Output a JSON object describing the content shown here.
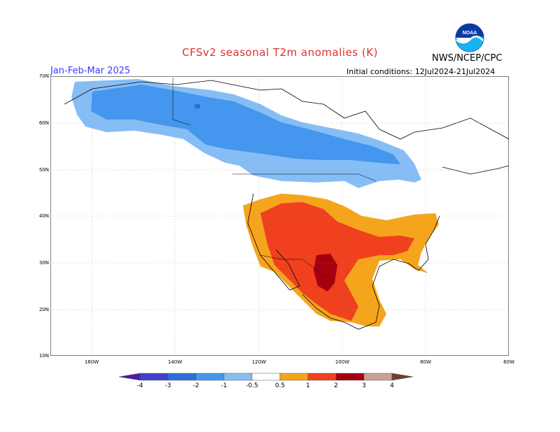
{
  "title": "CFSv2 seasonal T2m anomalies (K)",
  "period": "Jan-Feb-Mar 2025",
  "initial_conditions": "Initial conditions: 12Jul2024-21Jul2024",
  "agency": "NWS/NCEP/CPC",
  "logo_text": "NOAA",
  "lat_labels": [
    "70N",
    "60N",
    "50N",
    "40N",
    "30N",
    "20N",
    "10N"
  ],
  "lon_labels": [
    "160W",
    "140W",
    "120W",
    "100W",
    "80W",
    "60W"
  ],
  "colorbar": {
    "labels": [
      "-4",
      "-3",
      "-2",
      "-1",
      "-0.5",
      "0.5",
      "1",
      "2",
      "3",
      "4"
    ],
    "bins": [
      {
        "range": "< -4",
        "color": "#4a1aa8"
      },
      {
        "range": "-4 to -3",
        "color": "#4040cc"
      },
      {
        "range": "-3 to -2",
        "color": "#2d6fd8"
      },
      {
        "range": "-2 to -1",
        "color": "#4496ee"
      },
      {
        "range": "-1 to -0.5",
        "color": "#86bdf5"
      },
      {
        "range": "-0.5 to 0.5",
        "color": "#ffffff"
      },
      {
        "range": "0.5 to 1",
        "color": "#f5a51c"
      },
      {
        "range": "1 to 2",
        "color": "#f0401e"
      },
      {
        "range": "2 to 3",
        "color": "#a6000f"
      },
      {
        "range": "3 to 4",
        "color": "#c7a194"
      },
      {
        "range": "> 4",
        "color": "#6e4030"
      }
    ]
  }
}
